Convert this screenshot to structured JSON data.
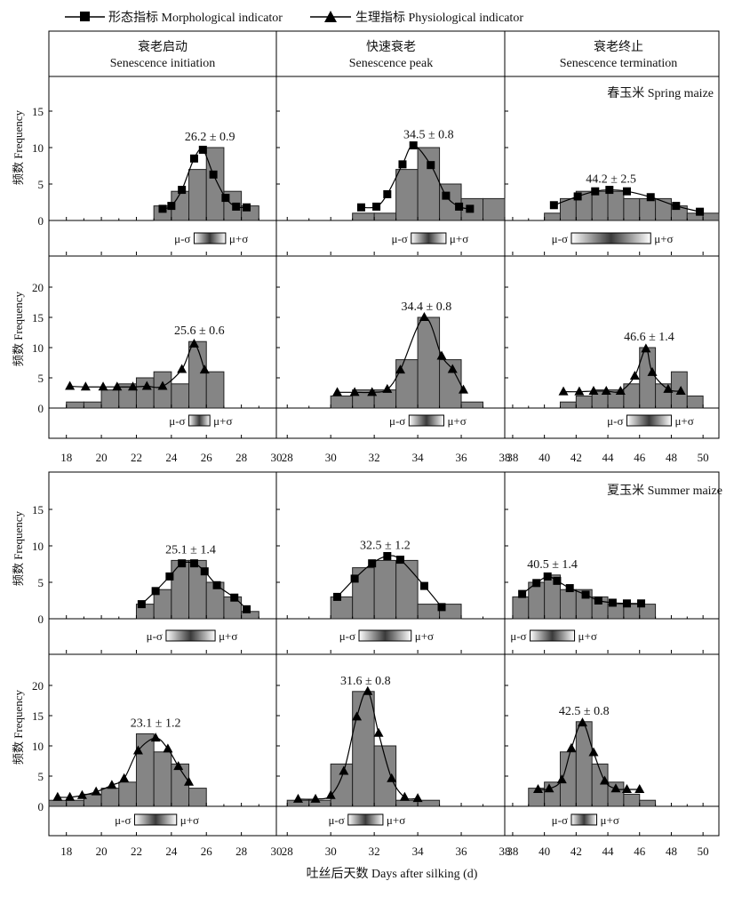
{
  "legend": {
    "morph": "形态指标 Morphological indicator",
    "phys": "生理指标 Physiological indicator"
  },
  "columns": [
    {
      "cn": "衰老启动",
      "en": "Senescence initiation"
    },
    {
      "cn": "快速衰老",
      "en": "Senescence peak"
    },
    {
      "cn": "衰老终止",
      "en": "Senescence termination"
    }
  ],
  "season_labels": {
    "spring": "春玉米 Spring maize",
    "summer": "夏玉米 Summer maize"
  },
  "ylabel": "频数 Frequency",
  "xlabel": "吐丝后天数 Days after silking (d)",
  "sigma_labels": {
    "minus": "μ-σ",
    "plus": "μ+σ"
  },
  "colors": {
    "bar": "#858585",
    "box_gradient_dark": "#3a3a3a"
  },
  "chart_data": [
    {
      "type": "bar",
      "season": "spring",
      "indicator": "morphological",
      "phase": "Senescence initiation",
      "label": "26.2 ± 0.9",
      "mean": 26.2,
      "sd": 0.9,
      "ylim": [
        0,
        20
      ],
      "yticks": [
        0,
        5,
        10,
        15
      ],
      "xticks": [
        18,
        20,
        22,
        24,
        26,
        28,
        30
      ],
      "xlim": [
        17,
        30
      ],
      "bin_starts": [
        23,
        24,
        25,
        26,
        27,
        28
      ],
      "values": [
        2,
        4,
        7,
        10,
        4,
        2
      ],
      "line_x": [
        23.5,
        24,
        24.6,
        25.3,
        25.8,
        26.4,
        27.1,
        27.7,
        28.3
      ],
      "line_y": [
        1.6,
        2,
        4.2,
        8.5,
        9.7,
        6.3,
        3.1,
        1.9,
        1.8
      ]
    },
    {
      "type": "bar",
      "season": "spring",
      "indicator": "morphological",
      "phase": "Senescence peak",
      "label": "34.5 ± 0.8",
      "mean": 34.5,
      "sd": 0.8,
      "ylim": [
        0,
        20
      ],
      "yticks": [
        0,
        5,
        10,
        15
      ],
      "xticks": [
        28,
        30,
        32,
        34,
        36,
        38
      ],
      "xlim": [
        27.5,
        38
      ],
      "bin_starts": [
        31,
        32,
        33,
        34,
        35,
        36,
        37
      ],
      "values": [
        1,
        1,
        7,
        10,
        5,
        3,
        3
      ],
      "line_x": [
        31.4,
        32.1,
        32.6,
        33.3,
        33.8,
        34.6,
        35.3,
        35.9,
        36.4
      ],
      "line_y": [
        1.8,
        1.9,
        3.6,
        7.7,
        10.3,
        7.6,
        3.4,
        1.9,
        1.6
      ]
    },
    {
      "type": "bar",
      "season": "spring",
      "indicator": "morphological",
      "phase": "Senescence termination",
      "label": "44.2 ± 2.5",
      "mean": 44.2,
      "sd": 2.5,
      "ylim": [
        0,
        20
      ],
      "yticks": [
        0,
        5,
        10,
        15
      ],
      "xticks": [
        38,
        40,
        42,
        44,
        46,
        48,
        50
      ],
      "xlim": [
        37.5,
        51
      ],
      "bin_starts": [
        40,
        41,
        42,
        43,
        44,
        45,
        46,
        47,
        48,
        49,
        50
      ],
      "values": [
        1,
        3,
        4,
        4,
        4,
        3,
        3,
        3,
        2,
        1,
        1
      ],
      "line_x": [
        40.6,
        42.1,
        43.2,
        44.1,
        45.2,
        46.7,
        48.3,
        49.8
      ],
      "line_y": [
        2.1,
        3.3,
        4,
        4.2,
        4,
        3.2,
        2,
        1.2
      ]
    },
    {
      "type": "bar",
      "season": "spring",
      "indicator": "physiological",
      "phase": "Senescence initiation",
      "label": "25.6 ± 0.6",
      "mean": 25.6,
      "sd": 0.6,
      "ylim": [
        0,
        25
      ],
      "yticks": [
        0,
        5,
        10,
        15,
        20
      ],
      "xticks": [
        18,
        20,
        22,
        24,
        26,
        28,
        30
      ],
      "xlim": [
        17,
        30
      ],
      "bin_starts": [
        18,
        19,
        20,
        21,
        22,
        23,
        24,
        25,
        26
      ],
      "values": [
        1,
        1,
        3,
        4,
        5,
        6,
        4,
        11,
        6
      ],
      "line_x": [
        18.2,
        19.1,
        20.1,
        20.9,
        21.8,
        22.6,
        23.5,
        24.6,
        25.3,
        25.9
      ],
      "line_y": [
        3.6,
        3.5,
        3.5,
        3.5,
        3.5,
        3.6,
        3.6,
        6.4,
        10.6,
        6.3
      ]
    },
    {
      "type": "bar",
      "season": "spring",
      "indicator": "physiological",
      "phase": "Senescence peak",
      "label": "34.4 ± 0.8",
      "mean": 34.4,
      "sd": 0.8,
      "ylim": [
        0,
        25
      ],
      "yticks": [
        0,
        5,
        10,
        15,
        20
      ],
      "xticks": [
        28,
        30,
        32,
        34,
        36,
        38
      ],
      "xlim": [
        27.5,
        38
      ],
      "bin_starts": [
        30,
        31,
        32,
        33,
        34,
        35,
        36
      ],
      "values": [
        2,
        3,
        3,
        8,
        15,
        8,
        1
      ],
      "line_x": [
        30.3,
        31.1,
        31.9,
        32.6,
        33.2,
        34.3,
        35.1,
        35.6,
        36.1
      ],
      "line_y": [
        2.6,
        2.6,
        2.6,
        3.1,
        6.3,
        15,
        8.6,
        6.4,
        3
      ]
    },
    {
      "type": "bar",
      "season": "spring",
      "indicator": "physiological",
      "phase": "Senescence termination",
      "label": "46.6 ± 1.4",
      "mean": 46.6,
      "sd": 1.4,
      "ylim": [
        0,
        25
      ],
      "yticks": [
        0,
        5,
        10,
        15,
        20
      ],
      "xticks": [
        38,
        40,
        42,
        44,
        46,
        48,
        50
      ],
      "xlim": [
        37.5,
        51
      ],
      "bin_starts": [
        41,
        42,
        43,
        44,
        45,
        46,
        47,
        48,
        49
      ],
      "values": [
        1,
        2,
        3,
        3,
        4,
        10,
        4,
        6,
        2
      ],
      "line_x": [
        41.2,
        42.2,
        43.1,
        43.9,
        44.8,
        45.7,
        46.4,
        46.8,
        47.8,
        48.6
      ],
      "line_y": [
        2.7,
        2.7,
        2.8,
        2.8,
        2.8,
        5.3,
        9.8,
        5.9,
        3.1,
        2.8
      ]
    },
    {
      "type": "bar",
      "season": "summer",
      "indicator": "morphological",
      "phase": "Senescence initiation",
      "label": "25.1 ± 1.4",
      "mean": 25.1,
      "sd": 1.4,
      "ylim": [
        0,
        20
      ],
      "yticks": [
        0,
        5,
        10,
        15
      ],
      "xticks": [
        18,
        20,
        22,
        24,
        26,
        28,
        30
      ],
      "xlim": [
        17,
        30
      ],
      "bin_starts": [
        22,
        23,
        24,
        25,
        26,
        27,
        28
      ],
      "values": [
        2,
        4,
        8,
        8,
        5,
        3,
        1
      ],
      "line_x": [
        22.3,
        23.1,
        23.9,
        24.6,
        25.3,
        25.9,
        26.6,
        27.6,
        28.3
      ],
      "line_y": [
        2,
        3.8,
        5.8,
        7.6,
        7.6,
        6.5,
        4.6,
        2.9,
        1.3
      ]
    },
    {
      "type": "bar",
      "season": "summer",
      "indicator": "morphological",
      "phase": "Senescence peak",
      "label": "32.5 ± 1.2",
      "mean": 32.5,
      "sd": 1.2,
      "ylim": [
        0,
        20
      ],
      "yticks": [
        0,
        5,
        10,
        15
      ],
      "xticks": [
        28,
        30,
        32,
        34,
        36,
        38
      ],
      "xlim": [
        27.5,
        38
      ],
      "bin_starts": [
        30,
        31,
        32,
        33,
        34,
        35
      ],
      "values": [
        3,
        7,
        8,
        8,
        2,
        2
      ],
      "line_x": [
        30.3,
        31.1,
        31.9,
        32.6,
        33.2,
        34.3,
        35.1
      ],
      "line_y": [
        3,
        5.5,
        7.6,
        8.6,
        8.1,
        4.5,
        1.6
      ]
    },
    {
      "type": "bar",
      "season": "summer",
      "indicator": "morphological",
      "phase": "Senescence termination",
      "label": "40.5 ± 1.4",
      "mean": 40.5,
      "sd": 1.4,
      "ylim": [
        0,
        20
      ],
      "yticks": [
        0,
        5,
        10,
        15
      ],
      "xticks": [
        38,
        40,
        42,
        44,
        46,
        48,
        50
      ],
      "xlim": [
        37.5,
        51
      ],
      "bin_starts": [
        38,
        39,
        40,
        41,
        42,
        43,
        44,
        45,
        46
      ],
      "values": [
        3,
        5,
        6,
        4,
        4,
        3,
        2,
        2,
        2
      ],
      "line_x": [
        38.6,
        39.5,
        40.2,
        40.8,
        41.6,
        42.6,
        43.4,
        44.3,
        45.2,
        46.1
      ],
      "line_y": [
        3.4,
        4.9,
        5.8,
        5.2,
        4.2,
        3.3,
        2.5,
        2.2,
        2.1,
        2.1
      ]
    },
    {
      "type": "bar",
      "season": "summer",
      "indicator": "physiological",
      "phase": "Senescence initiation",
      "label": "23.1 ± 1.2",
      "mean": 23.1,
      "sd": 1.2,
      "ylim": [
        0,
        25
      ],
      "yticks": [
        0,
        5,
        10,
        15,
        20
      ],
      "xticks": [
        18,
        20,
        22,
        24,
        26,
        28,
        30
      ],
      "xlim": [
        17,
        30
      ],
      "bin_starts": [
        17,
        18,
        19,
        20,
        21,
        22,
        23,
        24,
        25
      ],
      "values": [
        1,
        1,
        2,
        3,
        4,
        12,
        9,
        7,
        3
      ],
      "line_x": [
        17.5,
        18.2,
        18.9,
        19.7,
        20.6,
        21.3,
        22.1,
        23.1,
        23.8,
        24.4,
        25
      ],
      "line_y": [
        1.5,
        1.5,
        1.8,
        2.4,
        3.5,
        4.6,
        9.2,
        11.3,
        9.5,
        6.6,
        4
      ]
    },
    {
      "type": "bar",
      "season": "summer",
      "indicator": "physiological",
      "phase": "Senescence peak",
      "label": "31.6 ± 0.8",
      "mean": 31.6,
      "sd": 0.8,
      "ylim": [
        0,
        25
      ],
      "yticks": [
        0,
        5,
        10,
        15,
        20
      ],
      "xticks": [
        28,
        30,
        32,
        34,
        36,
        38
      ],
      "xlim": [
        27.5,
        38
      ],
      "bin_starts": [
        28,
        29,
        30,
        31,
        32,
        33,
        34
      ],
      "values": [
        1,
        1,
        7,
        19,
        10,
        1,
        1
      ],
      "line_x": [
        28.5,
        29.3,
        30,
        30.6,
        31.2,
        31.7,
        32.2,
        32.8,
        33.4,
        34
      ],
      "line_y": [
        1.2,
        1.2,
        1.8,
        5.8,
        14.8,
        19,
        12.1,
        4.6,
        1.5,
        1.3
      ]
    },
    {
      "type": "bar",
      "season": "summer",
      "indicator": "physiological",
      "phase": "Senescence termination",
      "label": "42.5 ± 0.8",
      "mean": 42.5,
      "sd": 0.8,
      "ylim": [
        0,
        25
      ],
      "yticks": [
        0,
        5,
        10,
        15,
        20
      ],
      "xticks": [
        38,
        40,
        42,
        44,
        46,
        48,
        50
      ],
      "xlim": [
        37.5,
        51
      ],
      "bin_starts": [
        39,
        40,
        41,
        42,
        43,
        44,
        45,
        46
      ],
      "values": [
        3,
        4,
        9,
        14,
        7,
        4,
        2,
        1
      ],
      "line_x": [
        39.6,
        40.3,
        41.1,
        41.7,
        42.4,
        43.1,
        43.8,
        44.5,
        45.2,
        46
      ],
      "line_y": [
        2.8,
        2.9,
        4.4,
        9.6,
        13.8,
        8.9,
        4.2,
        2.9,
        2.8,
        2.8
      ]
    }
  ]
}
